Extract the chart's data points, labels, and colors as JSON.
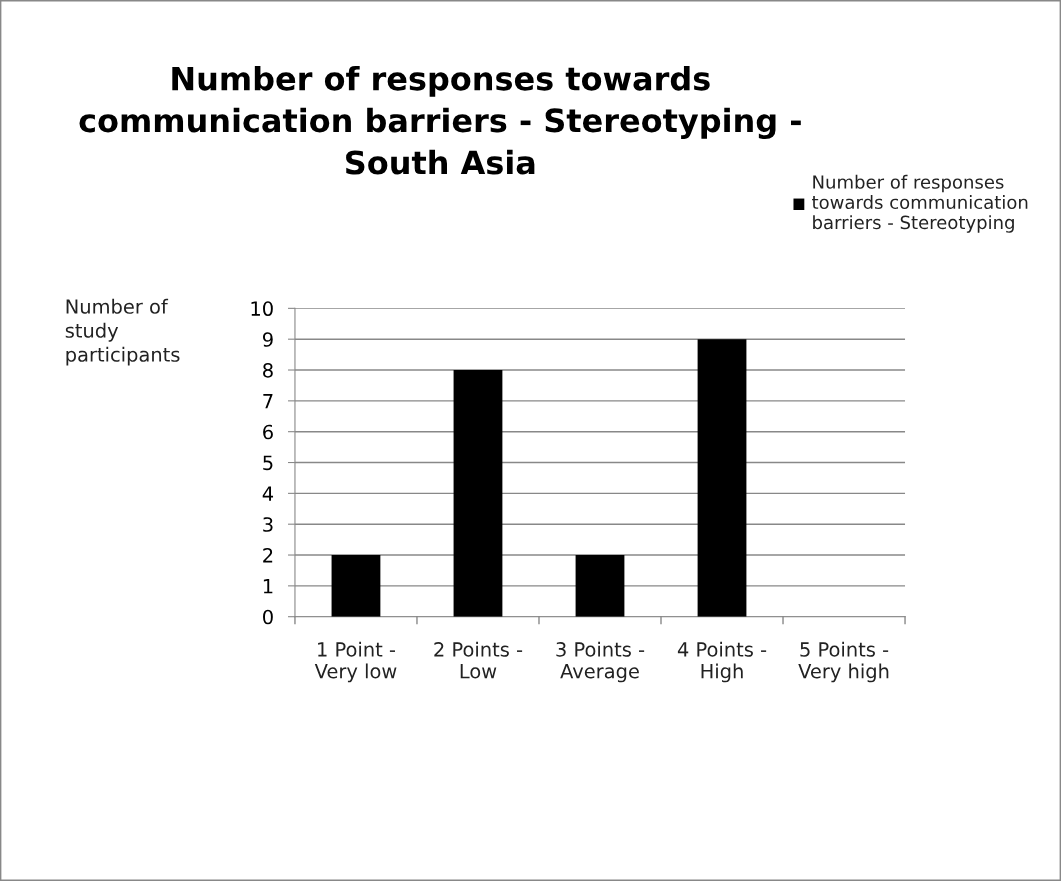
{
  "chart_data": {
    "type": "bar",
    "title": "Number of responses towards\ncommunication barriers - Stereotyping -\nSouth Asia",
    "ylabel": "Number of\nstudy\nparticipants",
    "categories": [
      "1 Point -\nVery low",
      "2 Points -\nLow",
      "3 Points -\nAverage",
      "4 Points -\nHigh",
      "5 Points -\nVery high"
    ],
    "series": [
      {
        "name": "Number of responses\ntowards communication\nbarriers - Stereotyping",
        "color": "#000000",
        "values": [
          2,
          8,
          2,
          9,
          0
        ]
      }
    ],
    "ylim": [
      0,
      10
    ],
    "yticks": [
      0,
      1,
      2,
      3,
      4,
      5,
      6,
      7,
      8,
      9,
      10
    ],
    "grid": "y",
    "legend": "top right"
  }
}
